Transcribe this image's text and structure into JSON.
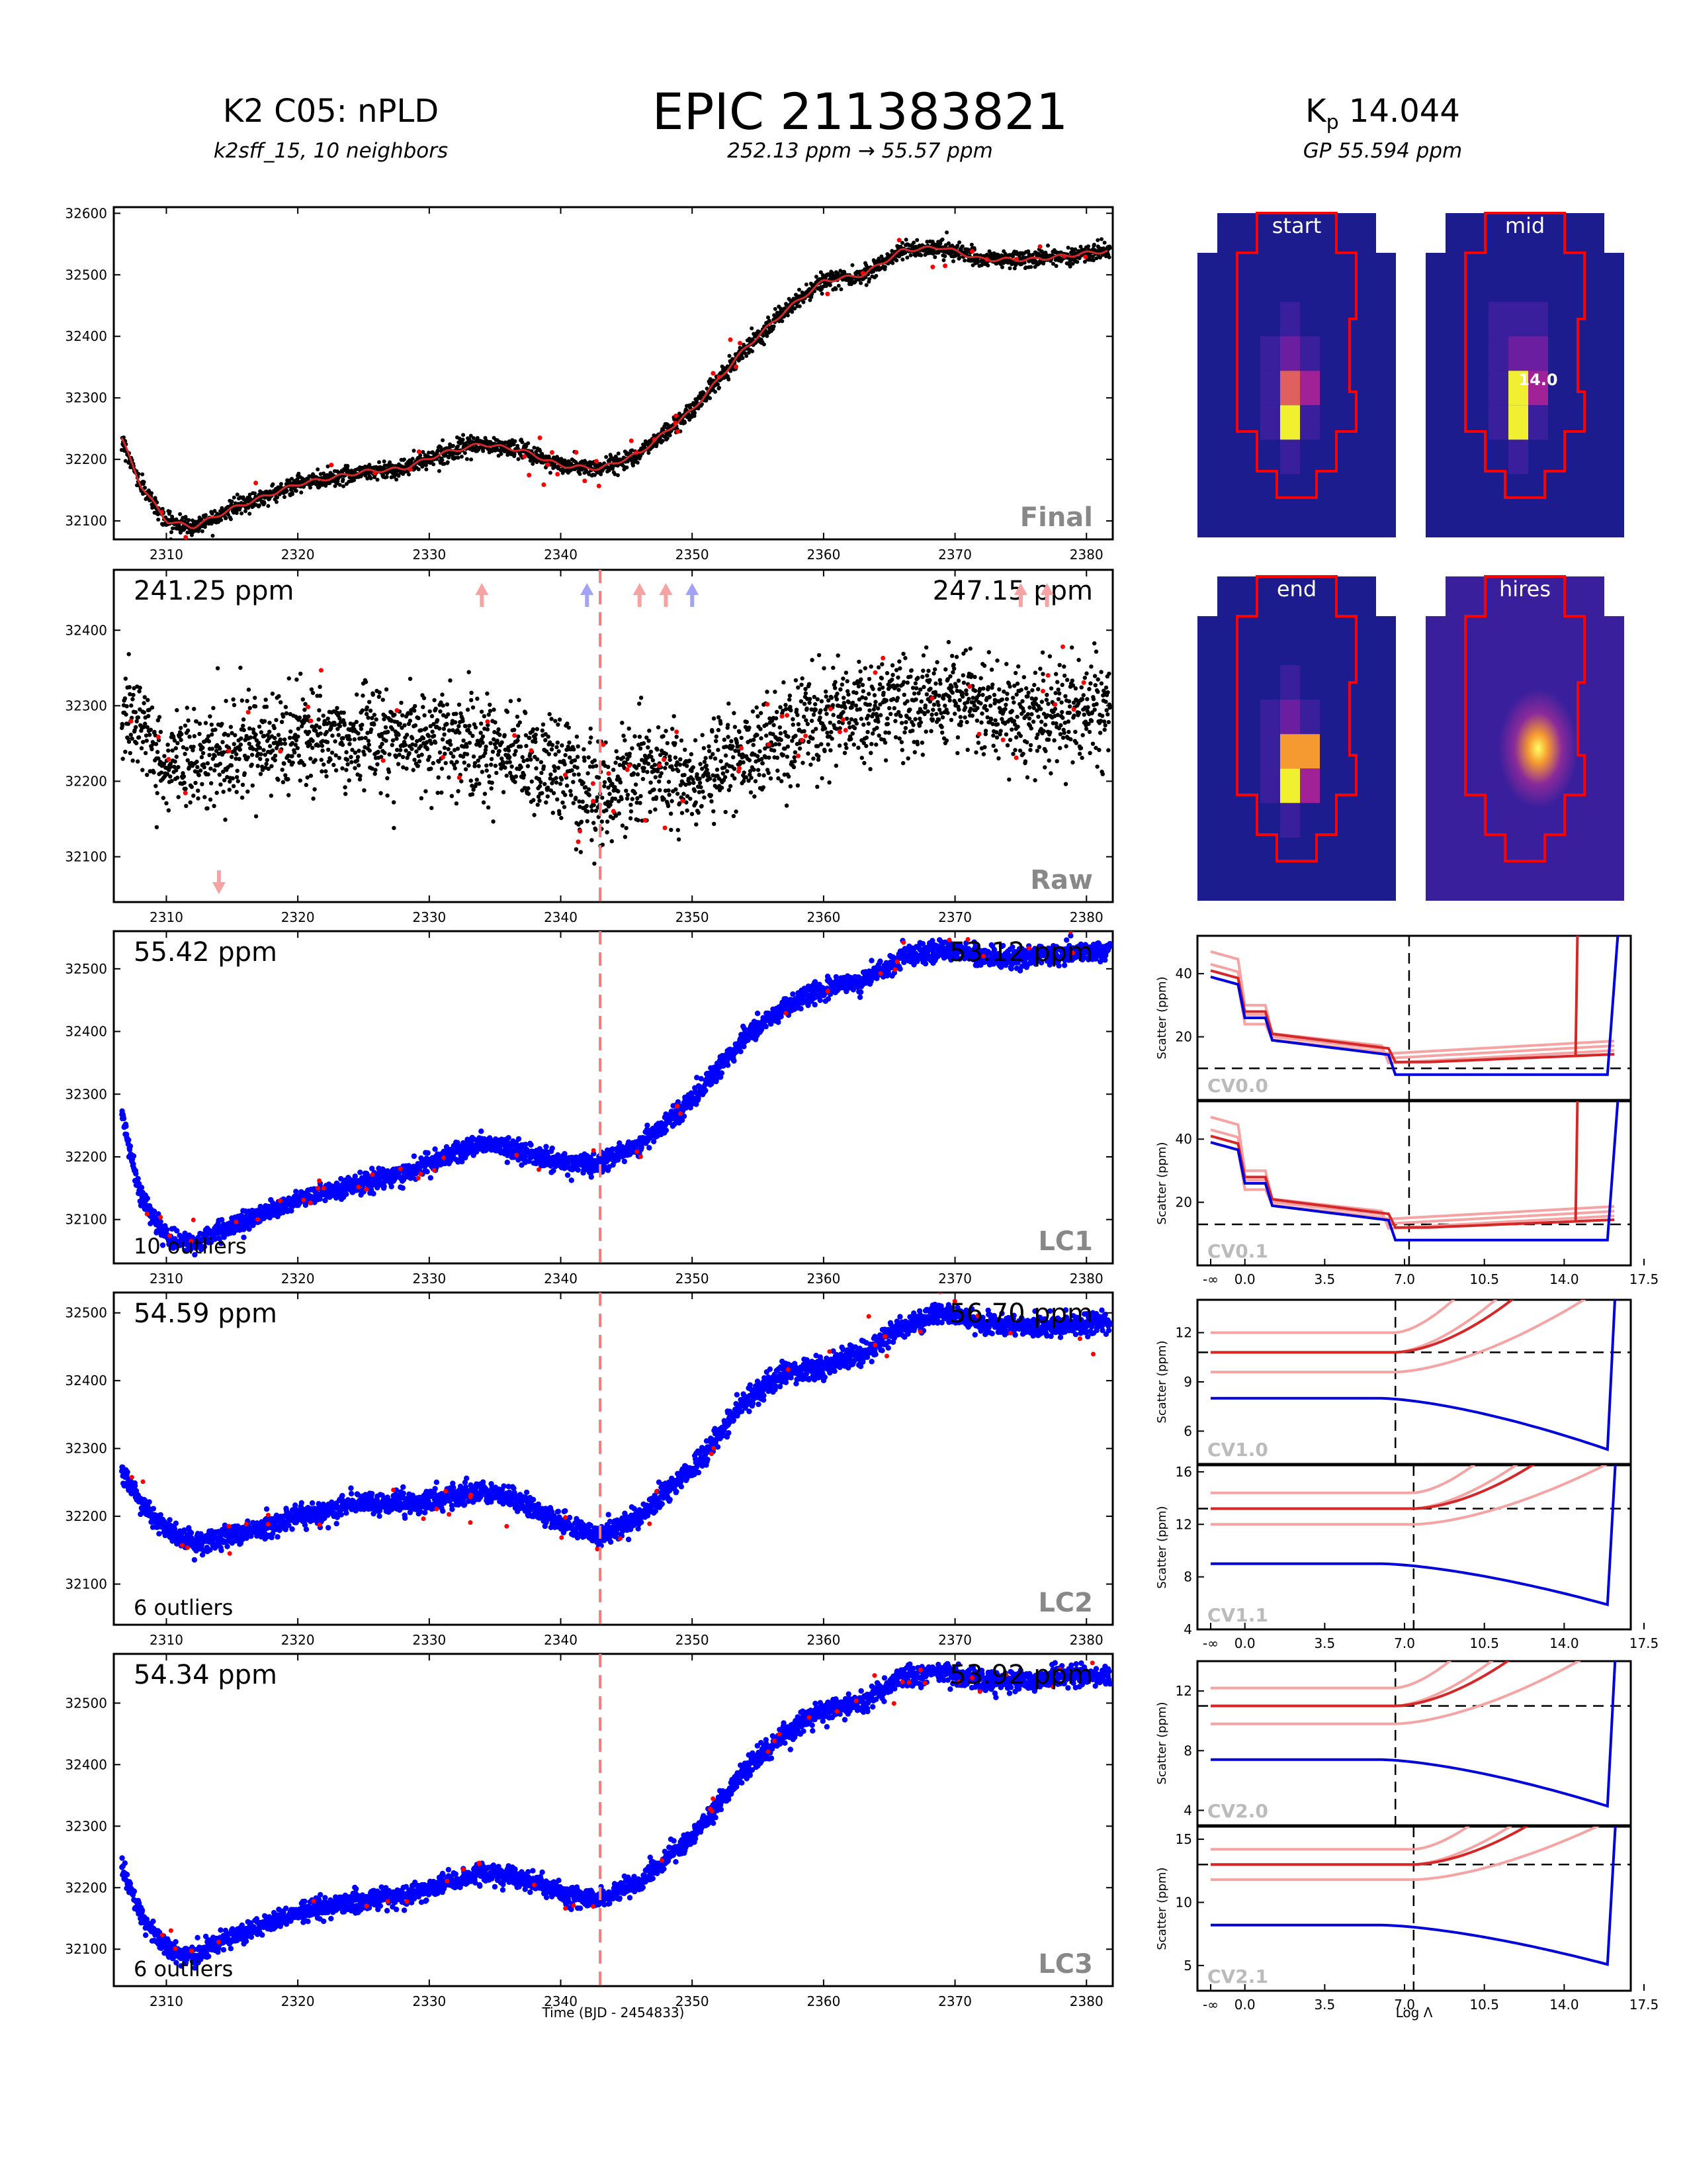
{
  "header": {
    "left_title": "K2 C05: nPLD",
    "left_subtitle": "k2sff_15, 10 neighbors",
    "center_title": "EPIC 211383821",
    "center_subtitle": "252.13 ppm → 55.57 ppm",
    "right_title_prefix": "K",
    "right_title_sub": "p",
    "right_title_value": " 14.044",
    "right_subtitle": "GP 55.594 ppm"
  },
  "light_curves": {
    "x_ticks": [
      "2310",
      "2320",
      "2330",
      "2340",
      "2350",
      "2360",
      "2370",
      "2380"
    ],
    "xlim": [
      2306,
      2382
    ],
    "x_axis_label": "Time (BJD - 2454833)",
    "breakpoint_time": 2343,
    "colors": {
      "raw_points": "#000000",
      "model_line": "#d62728",
      "fit_points": "#0000ff",
      "outliers": "#ff0000",
      "breakpoint": "#f08080"
    },
    "panels": [
      {
        "id": "final",
        "label": "Final",
        "ylim": [
          32070,
          32610
        ],
        "y_ticks": [
          "32100",
          "32200",
          "32300",
          "32400",
          "32500",
          "32600"
        ],
        "ppm_left": "",
        "ppm_right": "",
        "outliers_text": ""
      },
      {
        "id": "raw",
        "label": "Raw",
        "ylim": [
          32040,
          32480
        ],
        "y_ticks": [
          "32100",
          "32200",
          "32300",
          "32400"
        ],
        "ppm_left": "241.25 ppm",
        "ppm_right": "247.15 ppm",
        "outliers_text": ""
      },
      {
        "id": "lc1",
        "label": "LC1",
        "ylim": [
          32030,
          32560
        ],
        "y_ticks": [
          "32100",
          "32200",
          "32300",
          "32400",
          "32500"
        ],
        "ppm_left": "55.42 ppm",
        "ppm_right": "53.12 ppm",
        "outliers_text": "10 outliers"
      },
      {
        "id": "lc2",
        "label": "LC2",
        "ylim": [
          32040,
          32530
        ],
        "y_ticks": [
          "32100",
          "32200",
          "32300",
          "32400",
          "32500"
        ],
        "ppm_left": "54.59 ppm",
        "ppm_right": "56.70 ppm",
        "outliers_text": "6 outliers"
      },
      {
        "id": "lc3",
        "label": "LC3",
        "ylim": [
          32040,
          32580
        ],
        "y_ticks": [
          "32100",
          "32200",
          "32300",
          "32400",
          "32500"
        ],
        "ppm_left": "54.34 ppm",
        "ppm_right": "53.92 ppm",
        "outliers_text": "6 outliers"
      }
    ]
  },
  "chart_data": [
    {
      "type": "scatter",
      "title": "Final",
      "xlabel": "",
      "ylabel": "",
      "xlim": [
        2306,
        2382
      ],
      "ylim": [
        32070,
        32610
      ],
      "series": [
        {
          "values_trend": [
            [
              2306.5,
              32240
            ],
            [
              2308,
              32160
            ],
            [
              2310,
              32100
            ],
            [
              2312,
              32090
            ],
            [
              2315,
              32120
            ],
            [
              2320,
              32160
            ],
            [
              2325,
              32180
            ],
            [
              2328,
              32185
            ],
            [
              2331,
              32210
            ],
            [
              2334,
              32225
            ],
            [
              2337,
              32215
            ],
            [
              2340,
              32190
            ],
            [
              2343,
              32185
            ],
            [
              2346,
              32210
            ],
            [
              2350,
              32280
            ],
            [
              2354,
              32380
            ],
            [
              2357,
              32440
            ],
            [
              2360,
              32490
            ],
            [
              2363,
              32500
            ],
            [
              2366,
              32540
            ],
            [
              2369,
              32545
            ],
            [
              2372,
              32525
            ],
            [
              2376,
              32525
            ],
            [
              2382,
              32540
            ]
          ]
        }
      ]
    },
    {
      "type": "scatter",
      "title": "Raw",
      "xlabel": "",
      "ylabel": "",
      "xlim": [
        2306,
        2382
      ],
      "ylim": [
        32040,
        32480
      ],
      "series": [
        {
          "values_trend": [
            [
              2306.5,
              32300
            ],
            [
              2310,
              32230
            ],
            [
              2315,
              32250
            ],
            [
              2320,
              32260
            ],
            [
              2325,
              32270
            ],
            [
              2330,
              32260
            ],
            [
              2335,
              32250
            ],
            [
              2340,
              32220
            ],
            [
              2343,
              32190
            ],
            [
              2346,
              32230
            ],
            [
              2350,
              32210
            ],
            [
              2355,
              32250
            ],
            [
              2360,
              32290
            ],
            [
              2365,
              32310
            ],
            [
              2370,
              32320
            ],
            [
              2375,
              32290
            ],
            [
              2382,
              32310
            ]
          ]
        }
      ]
    },
    {
      "type": "scatter",
      "title": "LC1",
      "xlabel": "",
      "ylabel": "",
      "xlim": [
        2306,
        2382
      ],
      "ylim": [
        32030,
        32560
      ],
      "series": [
        {
          "values_trend": [
            [
              2306.5,
              32280
            ],
            [
              2308,
              32140
            ],
            [
              2310,
              32070
            ],
            [
              2312,
              32060
            ],
            [
              2315,
              32090
            ],
            [
              2320,
              32130
            ],
            [
              2325,
              32160
            ],
            [
              2328,
              32170
            ],
            [
              2331,
              32200
            ],
            [
              2334,
              32220
            ],
            [
              2337,
              32210
            ],
            [
              2340,
              32190
            ],
            [
              2343,
              32190
            ],
            [
              2346,
              32220
            ],
            [
              2350,
              32290
            ],
            [
              2354,
              32390
            ],
            [
              2357,
              32440
            ],
            [
              2360,
              32470
            ],
            [
              2363,
              32480
            ],
            [
              2366,
              32520
            ],
            [
              2369,
              32530
            ],
            [
              2372,
              32520
            ],
            [
              2376,
              32520
            ],
            [
              2382,
              32530
            ]
          ]
        }
      ]
    },
    {
      "type": "scatter",
      "title": "LC2",
      "xlabel": "",
      "ylabel": "",
      "xlim": [
        2306,
        2382
      ],
      "ylim": [
        32040,
        32530
      ],
      "series": [
        {
          "values_trend": [
            [
              2306.5,
              32270
            ],
            [
              2308,
              32220
            ],
            [
              2310,
              32180
            ],
            [
              2312,
              32160
            ],
            [
              2315,
              32170
            ],
            [
              2320,
              32200
            ],
            [
              2325,
              32220
            ],
            [
              2330,
              32220
            ],
            [
              2334,
              32240
            ],
            [
              2337,
              32220
            ],
            [
              2340,
              32190
            ],
            [
              2343,
              32170
            ],
            [
              2346,
              32200
            ],
            [
              2350,
              32270
            ],
            [
              2354,
              32370
            ],
            [
              2357,
              32410
            ],
            [
              2360,
              32420
            ],
            [
              2363,
              32440
            ],
            [
              2366,
              32480
            ],
            [
              2369,
              32500
            ],
            [
              2372,
              32485
            ],
            [
              2376,
              32480
            ],
            [
              2382,
              32485
            ]
          ]
        }
      ]
    },
    {
      "type": "scatter",
      "title": "LC3",
      "xlabel": "Time (BJD - 2454833)",
      "ylabel": "",
      "xlim": [
        2306,
        2382
      ],
      "ylim": [
        32040,
        32580
      ],
      "series": [
        {
          "values_trend": [
            [
              2306.5,
              32240
            ],
            [
              2308,
              32160
            ],
            [
              2310,
              32100
            ],
            [
              2312,
              32090
            ],
            [
              2315,
              32120
            ],
            [
              2320,
              32160
            ],
            [
              2325,
              32180
            ],
            [
              2328,
              32185
            ],
            [
              2331,
              32205
            ],
            [
              2334,
              32225
            ],
            [
              2337,
              32215
            ],
            [
              2340,
              32190
            ],
            [
              2343,
              32180
            ],
            [
              2346,
              32210
            ],
            [
              2350,
              32280
            ],
            [
              2354,
              32390
            ],
            [
              2357,
              32450
            ],
            [
              2360,
              32490
            ],
            [
              2363,
              32500
            ],
            [
              2366,
              32545
            ],
            [
              2369,
              32550
            ],
            [
              2372,
              32535
            ],
            [
              2376,
              32540
            ],
            [
              2382,
              32545
            ]
          ]
        }
      ]
    },
    {
      "type": "line",
      "title": "CV0.0",
      "xlabel": "",
      "ylabel": "Scatter (ppm)",
      "x": [
        "-∞",
        "0.0",
        "3.5",
        "7.0",
        "10.5",
        "14.0",
        "17.5"
      ],
      "ylim": [
        0,
        52
      ],
      "y_ticks": [
        "20",
        "40"
      ],
      "vline": 7.2,
      "hline": 10
    },
    {
      "type": "line",
      "title": "CV0.1",
      "xlabel": "",
      "ylabel": "Scatter (ppm)",
      "x": [
        "-∞",
        "0.0",
        "3.5",
        "7.0",
        "10.5",
        "14.0",
        "17.5"
      ],
      "ylim": [
        0,
        52
      ],
      "y_ticks": [
        "20",
        "40"
      ],
      "vline": 7.2,
      "hline": 13
    },
    {
      "type": "line",
      "title": "CV1.0",
      "xlabel": "",
      "ylabel": "Scatter (ppm)",
      "x": [
        "-∞",
        "0.0",
        "3.5",
        "7.0",
        "10.5",
        "14.0",
        "17.5"
      ],
      "ylim": [
        4,
        14
      ],
      "y_ticks": [
        "6",
        "9",
        "12"
      ],
      "vline": 6.6,
      "hline": 10.8
    },
    {
      "type": "line",
      "title": "CV1.1",
      "xlabel": "",
      "ylabel": "Scatter (ppm)",
      "x": [
        "-∞",
        "0.0",
        "3.5",
        "7.0",
        "10.5",
        "14.0",
        "17.5"
      ],
      "ylim": [
        4,
        16.5
      ],
      "y_ticks": [
        "4",
        "8",
        "12",
        "16"
      ],
      "vline": 7.4,
      "hline": 13.2
    },
    {
      "type": "line",
      "title": "CV2.0",
      "xlabel": "",
      "ylabel": "Scatter (ppm)",
      "x": [
        "-∞",
        "0.0",
        "3.5",
        "7.0",
        "10.5",
        "14.0",
        "17.5"
      ],
      "ylim": [
        3,
        14
      ],
      "y_ticks": [
        "4",
        "8",
        "12"
      ],
      "vline": 6.6,
      "hline": 11
    },
    {
      "type": "line",
      "title": "CV2.1",
      "xlabel": "Log Λ",
      "ylabel": "Scatter (ppm)",
      "x": [
        "-∞",
        "0.0",
        "3.5",
        "7.0",
        "10.5",
        "14.0",
        "17.5"
      ],
      "ylim": [
        3,
        16
      ],
      "y_ticks": [
        "5",
        "10",
        "15"
      ],
      "vline": 7.4,
      "hline": 13
    }
  ],
  "images": {
    "labels": [
      "start",
      "mid",
      "end",
      "hires"
    ],
    "magnitude_label": "14.0",
    "background": "#1c1c8e",
    "aperture_color": "#ff0000"
  },
  "cv": {
    "x_ticks": [
      "-∞",
      "0.0",
      "3.5",
      "7.0",
      "10.5",
      "14.0",
      "17.5"
    ],
    "x_axis_label": "Log Λ",
    "y_axis_label": "Scatter (ppm)",
    "colors": {
      "validation": "#d62728",
      "validation_faint": "#f5a3a3",
      "training": "#0000dd"
    }
  }
}
